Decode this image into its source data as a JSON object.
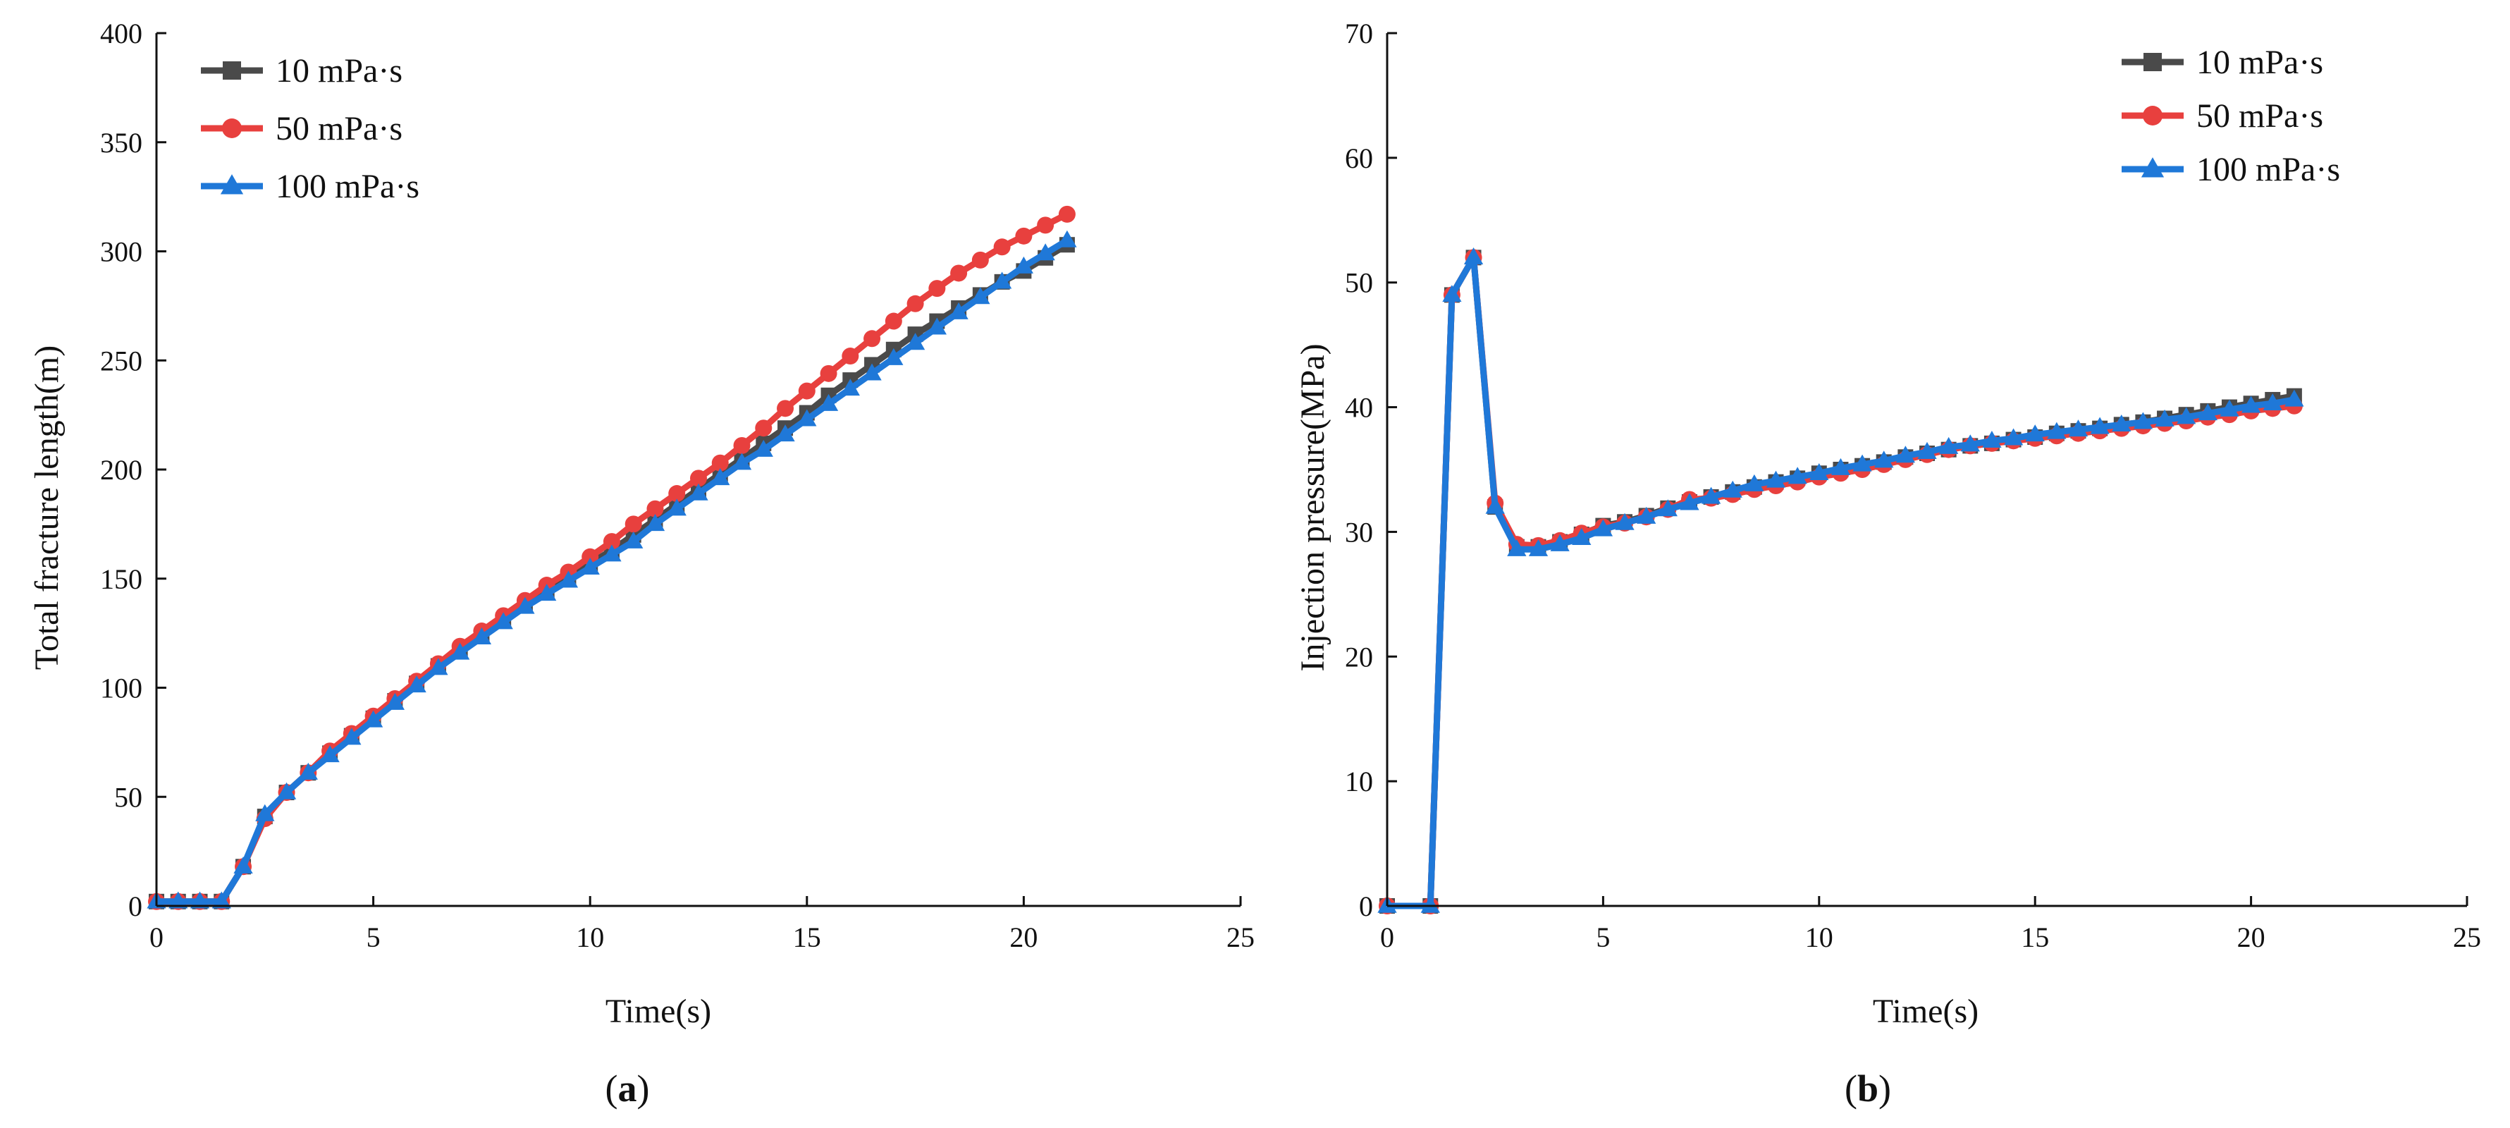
{
  "figure": {
    "panels": [
      {
        "label_open": "(",
        "label_letter": "a",
        "label_close": ")"
      },
      {
        "label_open": "(",
        "label_letter": "b",
        "label_close": ")"
      }
    ]
  },
  "chart_data": [
    {
      "type": "line",
      "panel": "a",
      "title": "",
      "xlabel": "Time(s)",
      "ylabel": "Total fracture length(m)",
      "xlim": [
        0,
        25
      ],
      "ylim": [
        0,
        400
      ],
      "xticks": [
        0,
        5,
        10,
        15,
        20,
        25
      ],
      "yticks": [
        0,
        50,
        100,
        150,
        200,
        250,
        300,
        350,
        400
      ],
      "legend_position": "top-left",
      "x": [
        0,
        0.5,
        1,
        1.5,
        2,
        2.5,
        3,
        3.5,
        4,
        4.5,
        5,
        5.5,
        6,
        6.5,
        7,
        7.5,
        8,
        8.5,
        9,
        9.5,
        10,
        10.5,
        11,
        11.5,
        12,
        12.5,
        13,
        13.5,
        14,
        14.5,
        15,
        15.5,
        16,
        16.5,
        17,
        17.5,
        18,
        18.5,
        19,
        19.5,
        20,
        20.5,
        21
      ],
      "series": [
        {
          "name": "10 mPa·s",
          "color": "#4a4a4a",
          "marker": "square",
          "values": [
            2,
            2,
            2,
            2,
            18,
            41,
            52,
            61,
            70,
            78,
            86,
            94,
            102,
            110,
            117,
            124,
            131,
            138,
            144,
            150,
            157,
            163,
            170,
            177,
            184,
            191,
            198,
            205,
            212,
            219,
            226,
            234,
            241,
            248,
            255,
            262,
            268,
            274,
            280,
            286,
            291,
            297,
            303
          ]
        },
        {
          "name": "50 mPa·s",
          "color": "#e8403e",
          "marker": "circle",
          "values": [
            2,
            2,
            2,
            2,
            18,
            40,
            52,
            61,
            71,
            79,
            87,
            95,
            103,
            111,
            119,
            126,
            133,
            140,
            147,
            153,
            160,
            167,
            175,
            182,
            189,
            196,
            203,
            211,
            219,
            228,
            236,
            244,
            252,
            260,
            268,
            276,
            283,
            290,
            296,
            302,
            307,
            312,
            317
          ]
        },
        {
          "name": "100 mPa·s",
          "color": "#1f78d8",
          "marker": "triangle",
          "values": [
            2,
            2,
            2,
            2,
            18,
            42,
            52,
            61,
            69,
            77,
            85,
            93,
            101,
            109,
            116,
            123,
            130,
            137,
            143,
            149,
            155,
            161,
            167,
            175,
            182,
            189,
            196,
            203,
            209,
            216,
            223,
            230,
            237,
            244,
            251,
            258,
            265,
            272,
            279,
            286,
            293,
            299,
            305
          ]
        }
      ]
    },
    {
      "type": "line",
      "panel": "b",
      "title": "",
      "xlabel": "Time(s)",
      "ylabel": "Injection pressure(MPa)",
      "xlim": [
        0,
        25
      ],
      "ylim": [
        0,
        70
      ],
      "xticks": [
        0,
        5,
        10,
        15,
        20,
        25
      ],
      "yticks": [
        0,
        10,
        20,
        30,
        40,
        50,
        60,
        70
      ],
      "legend_position": "top-right",
      "x": [
        0,
        1,
        1.5,
        2,
        2.5,
        3,
        3.5,
        4,
        4.5,
        5,
        5.5,
        6,
        6.5,
        7,
        7.5,
        8,
        8.5,
        9,
        9.5,
        10,
        10.5,
        11,
        11.5,
        12,
        12.5,
        13,
        13.5,
        14,
        14.5,
        15,
        15.5,
        16,
        16.5,
        17,
        17.5,
        18,
        18.5,
        19,
        19.5,
        20,
        20.5,
        21
      ],
      "series": [
        {
          "name": "10 mPa·s",
          "color": "#4a4a4a",
          "marker": "square",
          "values": [
            0,
            0,
            49,
            52,
            32,
            28.8,
            28.8,
            29.2,
            29.8,
            30.5,
            30.8,
            31.3,
            31.9,
            32.4,
            32.8,
            33.2,
            33.6,
            34,
            34.3,
            34.7,
            35,
            35.3,
            35.6,
            36,
            36.3,
            36.6,
            36.9,
            37.1,
            37.4,
            37.6,
            37.9,
            38.1,
            38.3,
            38.6,
            38.8,
            39.1,
            39.4,
            39.7,
            40,
            40.3,
            40.6,
            40.9
          ]
        },
        {
          "name": "50 mPa·s",
          "color": "#e8403e",
          "marker": "circle",
          "values": [
            0,
            0,
            49,
            52,
            32.3,
            29,
            28.9,
            29.3,
            29.9,
            30.4,
            30.7,
            31.2,
            31.8,
            32.6,
            32.7,
            33,
            33.4,
            33.7,
            34,
            34.4,
            34.7,
            35,
            35.4,
            35.8,
            36.2,
            36.6,
            36.9,
            37.1,
            37.3,
            37.5,
            37.7,
            37.9,
            38.1,
            38.3,
            38.5,
            38.7,
            38.9,
            39.2,
            39.4,
            39.7,
            39.9,
            40.1
          ]
        },
        {
          "name": "100 mPa·s",
          "color": "#1f78d8",
          "marker": "triangle",
          "values": [
            0,
            0,
            49,
            52,
            32,
            28.6,
            28.6,
            29,
            29.5,
            30.2,
            30.7,
            31.2,
            31.8,
            32.3,
            32.8,
            33.3,
            33.8,
            34.1,
            34.4,
            34.7,
            35.1,
            35.4,
            35.7,
            36.1,
            36.4,
            36.8,
            37,
            37.3,
            37.5,
            37.8,
            38,
            38.2,
            38.4,
            38.6,
            38.8,
            39,
            39.2,
            39.5,
            39.8,
            40.1,
            40.3,
            40.6
          ]
        }
      ]
    }
  ]
}
